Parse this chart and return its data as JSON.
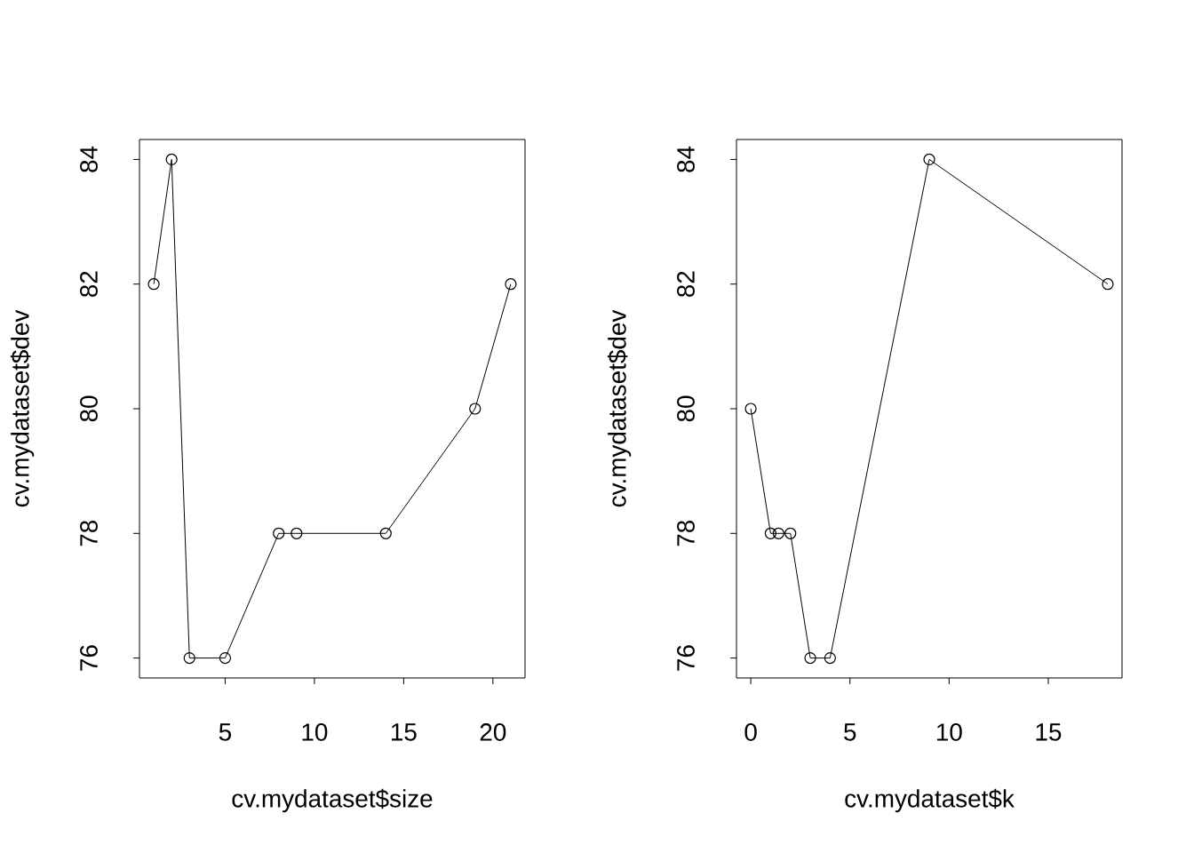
{
  "chart_data": [
    {
      "type": "line",
      "xlabel": "cv.mydataset$size",
      "ylabel": "cv.mydataset$dev",
      "x": [
        1,
        2,
        3,
        5,
        8,
        9,
        14,
        19,
        21
      ],
      "series": [
        {
          "color": "#000000",
          "values": [
            82,
            84,
            76,
            76,
            78,
            78,
            78,
            80,
            82
          ]
        }
      ],
      "xlim": [
        0.2,
        21.8
      ],
      "ylim": [
        75.68,
        84.32
      ],
      "xticks": [
        5,
        10,
        15,
        20
      ],
      "yticks": [
        76,
        78,
        80,
        82,
        84
      ],
      "marker": "circle",
      "line_style": "solid",
      "grid": false
    },
    {
      "type": "line",
      "xlabel": "cv.mydataset$k",
      "ylabel": "cv.mydataset$dev",
      "x": [
        0,
        1,
        1.4,
        2,
        3,
        4,
        9,
        18
      ],
      "series": [
        {
          "color": "#000000",
          "values": [
            80,
            78,
            78,
            78,
            76,
            76,
            84,
            82
          ]
        }
      ],
      "xlim": [
        -0.72,
        18.72
      ],
      "ylim": [
        75.68,
        84.32
      ],
      "xticks": [
        0,
        5,
        10,
        15
      ],
      "yticks": [
        76,
        78,
        80,
        82,
        84
      ],
      "marker": "circle",
      "line_style": "solid",
      "grid": false
    }
  ]
}
